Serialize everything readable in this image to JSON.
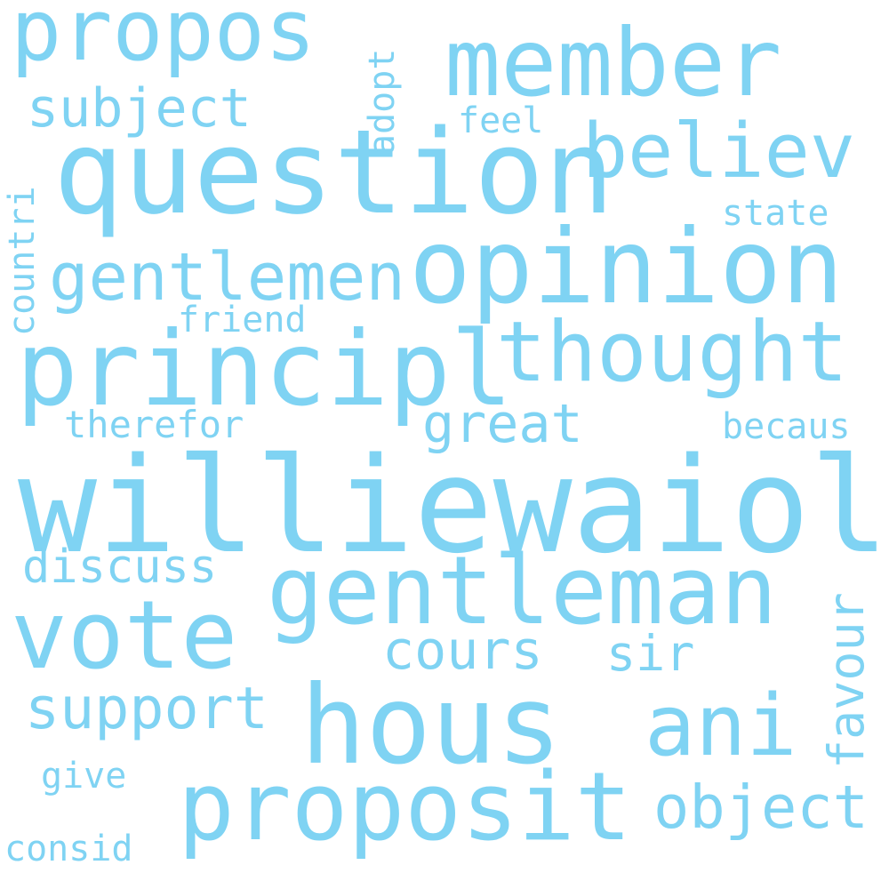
{
  "color": "#7fd3f3",
  "words": {
    "williewaiola": "williewaiola",
    "question": "question",
    "principl": "principl",
    "opinion": "opinion",
    "hous": "hous",
    "gentleman": "gentleman",
    "proposit": "proposit",
    "member": "member",
    "vote": "vote",
    "thought": "thought",
    "propos": "propos",
    "believ": "believ",
    "ani": "ani",
    "gentlemen": "gentlemen",
    "object": "object",
    "support": "support",
    "cours": "cours",
    "subject": "subject",
    "great": "great",
    "discuss": "discuss",
    "favour": "favour",
    "sir": "sir",
    "therefor": "therefor",
    "friend": "friend",
    "becaus": "becaus",
    "state": "state",
    "consid": "consid",
    "feel": "feel",
    "countri": "countri",
    "give": "give",
    "adopt": "adopt"
  }
}
